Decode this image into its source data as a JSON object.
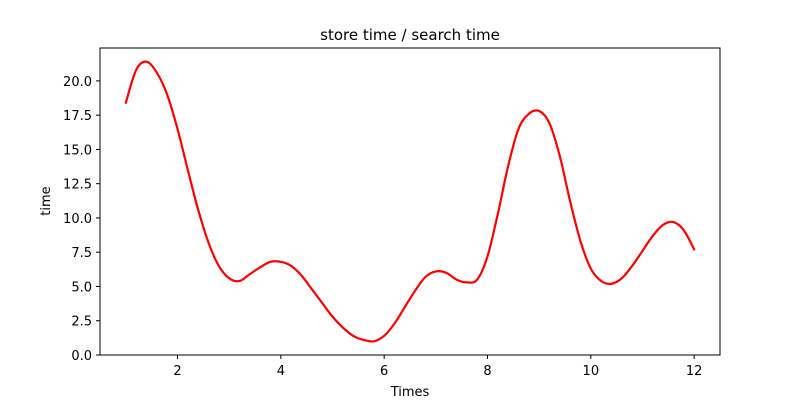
{
  "chart_data": {
    "type": "line",
    "title": "store time / search time",
    "xlabel": "Times",
    "ylabel": "time",
    "xlim": [
      0.5,
      12.5
    ],
    "ylim": [
      0,
      22.4
    ],
    "xticks": [
      2,
      4,
      6,
      8,
      10,
      12
    ],
    "yticks": [
      0.0,
      2.5,
      5.0,
      7.5,
      10.0,
      12.5,
      15.0,
      17.5,
      20.0
    ],
    "xtick_labels": [
      "2",
      "4",
      "6",
      "8",
      "10",
      "12"
    ],
    "ytick_labels": [
      "0.0",
      "2.5",
      "5.0",
      "7.5",
      "10.0",
      "12.5",
      "15.0",
      "17.5",
      "20.0"
    ],
    "grid": false,
    "series": [
      {
        "color": "#ff0000",
        "x": [
          1.0,
          1.2,
          1.4,
          1.6,
          1.8,
          2.0,
          2.2,
          2.4,
          2.6,
          2.8,
          3.0,
          3.2,
          3.4,
          3.6,
          3.8,
          4.0,
          4.2,
          4.4,
          4.6,
          4.8,
          5.0,
          5.2,
          5.4,
          5.6,
          5.8,
          6.0,
          6.2,
          6.4,
          6.6,
          6.8,
          7.0,
          7.2,
          7.4,
          7.6,
          7.8,
          8.0,
          8.2,
          8.4,
          8.6,
          8.8,
          9.0,
          9.2,
          9.4,
          9.6,
          9.8,
          10.0,
          10.2,
          10.4,
          10.6,
          10.8,
          11.0,
          11.2,
          11.4,
          11.6,
          11.8,
          12.0
        ],
        "y": [
          18.4,
          20.8,
          21.4,
          20.6,
          19.0,
          16.5,
          13.5,
          10.6,
          8.2,
          6.5,
          5.6,
          5.4,
          5.9,
          6.4,
          6.8,
          6.8,
          6.5,
          5.8,
          4.8,
          3.8,
          2.8,
          2.0,
          1.4,
          1.1,
          1.0,
          1.4,
          2.3,
          3.5,
          4.7,
          5.7,
          6.1,
          6.0,
          5.5,
          5.3,
          5.5,
          7.2,
          10.3,
          13.8,
          16.5,
          17.6,
          17.8,
          16.9,
          14.5,
          11.2,
          8.3,
          6.3,
          5.4,
          5.2,
          5.6,
          6.5,
          7.6,
          8.7,
          9.5,
          9.7,
          9.1,
          7.7
        ]
      }
    ]
  }
}
